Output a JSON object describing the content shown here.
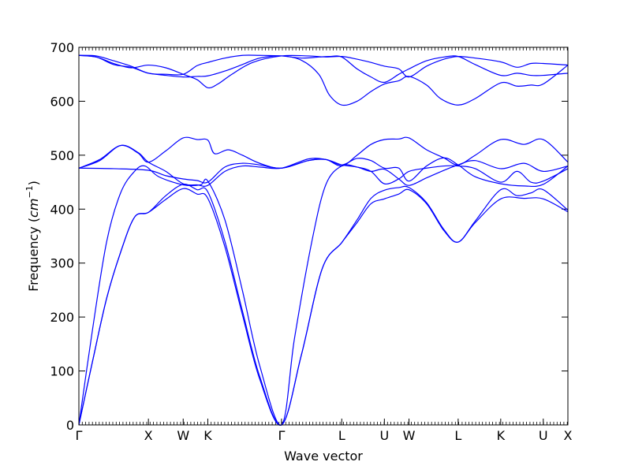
{
  "chart_data": {
    "type": "line",
    "title": "",
    "xlabel": "Wave vector",
    "ylabel": {
      "prefix": "Frequency (",
      "unit_base": "cm",
      "unit_exp": "−1",
      "suffix": ")"
    },
    "ylim": [
      0,
      700
    ],
    "yticks": [
      0,
      100,
      200,
      300,
      400,
      500,
      600,
      700
    ],
    "grid": false,
    "line_color": "#0000ff",
    "x_points": [
      {
        "label": "Γ",
        "x": 0
      },
      {
        "label": "X",
        "x": 1
      },
      {
        "label": "W",
        "x": 1.5
      },
      {
        "label": "K",
        "x": 1.854
      },
      {
        "label": "Γ",
        "x": 2.914
      },
      {
        "label": "L",
        "x": 3.78
      },
      {
        "label": "U",
        "x": 4.393
      },
      {
        "label": "W",
        "x": 4.747
      },
      {
        "label": "L",
        "x": 5.454
      },
      {
        "label": "K",
        "x": 6.066
      },
      {
        "label": "U",
        "x": 6.678
      },
      {
        "label": "X",
        "x": 7.032
      }
    ],
    "xlim": [
      0,
      7.032
    ],
    "series": [
      {
        "values": [
          [
            0,
            0
          ],
          [
            0.2,
            120
          ],
          [
            0.4,
            235
          ],
          [
            0.6,
            320
          ],
          [
            0.8,
            385
          ],
          [
            1,
            394
          ],
          [
            1.25,
            418
          ],
          [
            1.5,
            438
          ],
          [
            1.7,
            428
          ],
          [
            1.854,
            420
          ],
          [
            2.1,
            330
          ],
          [
            2.35,
            205
          ],
          [
            2.6,
            85
          ],
          [
            2.914,
            0
          ],
          [
            3.2,
            130
          ],
          [
            3.5,
            290
          ],
          [
            3.78,
            338
          ],
          [
            4.0,
            375
          ],
          [
            4.2,
            410
          ],
          [
            4.393,
            419
          ],
          [
            4.6,
            428
          ],
          [
            4.747,
            436
          ],
          [
            5.0,
            410
          ],
          [
            5.25,
            360
          ],
          [
            5.454,
            339
          ],
          [
            5.7,
            375
          ],
          [
            6.066,
            419
          ],
          [
            6.4,
            420
          ],
          [
            6.678,
            419
          ],
          [
            7.032,
            395
          ]
        ]
      },
      {
        "values": [
          [
            0,
            0
          ],
          [
            0.2,
            120
          ],
          [
            0.4,
            235
          ],
          [
            0.6,
            320
          ],
          [
            0.8,
            385
          ],
          [
            1,
            394
          ],
          [
            1.25,
            425
          ],
          [
            1.5,
            446
          ],
          [
            1.7,
            436
          ],
          [
            1.854,
            432
          ],
          [
            2.1,
            340
          ],
          [
            2.35,
            212
          ],
          [
            2.6,
            90
          ],
          [
            2.914,
            0
          ],
          [
            3.2,
            130
          ],
          [
            3.5,
            290
          ],
          [
            3.78,
            338
          ],
          [
            4.0,
            380
          ],
          [
            4.2,
            420
          ],
          [
            4.393,
            435
          ],
          [
            4.6,
            440
          ],
          [
            4.747,
            440
          ],
          [
            5.0,
            412
          ],
          [
            5.25,
            362
          ],
          [
            5.454,
            339
          ],
          [
            5.7,
            378
          ],
          [
            6.066,
            436
          ],
          [
            6.3,
            425
          ],
          [
            6.5,
            430
          ],
          [
            6.678,
            436
          ],
          [
            7.032,
            398
          ]
        ]
      },
      {
        "values": [
          [
            0,
            0
          ],
          [
            0.2,
            180
          ],
          [
            0.4,
            340
          ],
          [
            0.6,
            430
          ],
          [
            0.8,
            470
          ],
          [
            0.95,
            480
          ],
          [
            1.15,
            460
          ],
          [
            1.5,
            445
          ],
          [
            1.75,
            445
          ],
          [
            1.854,
            452
          ],
          [
            2.1,
            380
          ],
          [
            2.35,
            250
          ],
          [
            2.6,
            110
          ],
          [
            2.914,
            0
          ],
          [
            3.1,
            160
          ],
          [
            3.35,
            340
          ],
          [
            3.55,
            445
          ],
          [
            3.78,
            480
          ],
          [
            4.0,
            478
          ],
          [
            4.2,
            470
          ],
          [
            4.393,
            447
          ],
          [
            4.6,
            456
          ],
          [
            4.747,
            470
          ],
          [
            5.0,
            476
          ],
          [
            5.25,
            480
          ],
          [
            5.454,
            480
          ],
          [
            5.7,
            475
          ],
          [
            6.066,
            450
          ],
          [
            6.3,
            470
          ],
          [
            6.5,
            450
          ],
          [
            6.678,
            452
          ],
          [
            7.032,
            475
          ]
        ]
      },
      {
        "values": [
          [
            0,
            476
          ],
          [
            0.5,
            475
          ],
          [
            1.0,
            472
          ],
          [
            1.25,
            462
          ],
          [
            1.5,
            456
          ],
          [
            1.7,
            453
          ],
          [
            1.854,
            450
          ],
          [
            2.1,
            478
          ],
          [
            2.35,
            485
          ],
          [
            2.6,
            482
          ],
          [
            2.914,
            476
          ],
          [
            3.3,
            490
          ],
          [
            3.55,
            492
          ],
          [
            3.78,
            482
          ],
          [
            4.0,
            478
          ],
          [
            4.2,
            470
          ],
          [
            4.393,
            474
          ],
          [
            4.6,
            456
          ],
          [
            4.747,
            444
          ],
          [
            5.0,
            458
          ],
          [
            5.25,
            472
          ],
          [
            5.454,
            482
          ],
          [
            5.7,
            490
          ],
          [
            6.066,
            475
          ],
          [
            6.4,
            485
          ],
          [
            6.678,
            470
          ],
          [
            7.032,
            480
          ]
        ]
      },
      {
        "values": [
          [
            0,
            476
          ],
          [
            0.3,
            490
          ],
          [
            0.6,
            518
          ],
          [
            0.85,
            505
          ],
          [
            1,
            487
          ],
          [
            1.25,
            470
          ],
          [
            1.5,
            447
          ],
          [
            1.7,
            445
          ],
          [
            1.854,
            444
          ],
          [
            2.1,
            470
          ],
          [
            2.35,
            480
          ],
          [
            2.6,
            478
          ],
          [
            2.914,
            476
          ],
          [
            3.3,
            493
          ],
          [
            3.55,
            492
          ],
          [
            3.78,
            482
          ],
          [
            4.0,
            494
          ],
          [
            4.2,
            490
          ],
          [
            4.393,
            476
          ],
          [
            4.6,
            476
          ],
          [
            4.747,
            452
          ],
          [
            5.0,
            480
          ],
          [
            5.25,
            495
          ],
          [
            5.454,
            482
          ],
          [
            5.7,
            460
          ],
          [
            6.066,
            447
          ],
          [
            6.4,
            443
          ],
          [
            6.678,
            446
          ],
          [
            7.032,
            480
          ]
        ]
      },
      {
        "values": [
          [
            0,
            476
          ],
          [
            0.3,
            492
          ],
          [
            0.6,
            518
          ],
          [
            0.85,
            504
          ],
          [
            1,
            487
          ],
          [
            1.25,
            508
          ],
          [
            1.5,
            532
          ],
          [
            1.7,
            529
          ],
          [
            1.854,
            528
          ],
          [
            1.95,
            503
          ],
          [
            2.15,
            510
          ],
          [
            2.35,
            500
          ],
          [
            2.6,
            485
          ],
          [
            2.914,
            476
          ],
          [
            3.3,
            490
          ],
          [
            3.55,
            492
          ],
          [
            3.78,
            480
          ],
          [
            4.0,
            500
          ],
          [
            4.2,
            520
          ],
          [
            4.393,
            529
          ],
          [
            4.6,
            530
          ],
          [
            4.747,
            532
          ],
          [
            5.0,
            510
          ],
          [
            5.25,
            495
          ],
          [
            5.454,
            482
          ],
          [
            5.7,
            500
          ],
          [
            6.066,
            529
          ],
          [
            6.4,
            520
          ],
          [
            6.678,
            529
          ],
          [
            7.032,
            487
          ]
        ]
      },
      {
        "values": [
          [
            0,
            685
          ],
          [
            0.25,
            682
          ],
          [
            0.5,
            670
          ],
          [
            0.75,
            662
          ],
          [
            1.0,
            667
          ],
          [
            1.25,
            662
          ],
          [
            1.5,
            650
          ],
          [
            1.7,
            640
          ],
          [
            1.854,
            625
          ],
          [
            2.0,
            632
          ],
          [
            2.2,
            650
          ],
          [
            2.5,
            672
          ],
          [
            2.914,
            684
          ],
          [
            3.3,
            684
          ],
          [
            3.55,
            682
          ],
          [
            3.78,
            683
          ],
          [
            4.0,
            678
          ],
          [
            4.2,
            672
          ],
          [
            4.393,
            665
          ],
          [
            4.6,
            660
          ],
          [
            4.747,
            645
          ],
          [
            5.0,
            665
          ],
          [
            5.25,
            678
          ],
          [
            5.454,
            683
          ],
          [
            5.7,
            680
          ],
          [
            6.066,
            673
          ],
          [
            6.3,
            663
          ],
          [
            6.5,
            670
          ],
          [
            6.678,
            670
          ],
          [
            7.032,
            667
          ]
        ]
      },
      {
        "values": [
          [
            0,
            685
          ],
          [
            0.25,
            682
          ],
          [
            0.5,
            668
          ],
          [
            0.75,
            663
          ],
          [
            1.0,
            652
          ],
          [
            1.25,
            648
          ],
          [
            1.5,
            645
          ],
          [
            1.7,
            646
          ],
          [
            1.854,
            647
          ],
          [
            2.1,
            656
          ],
          [
            2.35,
            668
          ],
          [
            2.6,
            680
          ],
          [
            2.914,
            684
          ],
          [
            3.2,
            676
          ],
          [
            3.45,
            650
          ],
          [
            3.6,
            612
          ],
          [
            3.78,
            593
          ],
          [
            4.0,
            600
          ],
          [
            4.2,
            618
          ],
          [
            4.393,
            632
          ],
          [
            4.6,
            638
          ],
          [
            4.747,
            646
          ],
          [
            5.0,
            630
          ],
          [
            5.2,
            605
          ],
          [
            5.454,
            593
          ],
          [
            5.7,
            605
          ],
          [
            6.066,
            634
          ],
          [
            6.3,
            628
          ],
          [
            6.5,
            630
          ],
          [
            6.678,
            632
          ],
          [
            7.032,
            667
          ]
        ]
      },
      {
        "values": [
          [
            0,
            685
          ],
          [
            0.25,
            684
          ],
          [
            0.5,
            675
          ],
          [
            0.75,
            665
          ],
          [
            1.0,
            652
          ],
          [
            1.25,
            650
          ],
          [
            1.5,
            650
          ],
          [
            1.7,
            666
          ],
          [
            1.854,
            672
          ],
          [
            2.1,
            680
          ],
          [
            2.35,
            685
          ],
          [
            2.6,
            685
          ],
          [
            2.914,
            684
          ],
          [
            3.2,
            680
          ],
          [
            3.45,
            682
          ],
          [
            3.6,
            683
          ],
          [
            3.78,
            682
          ],
          [
            4.0,
            660
          ],
          [
            4.2,
            645
          ],
          [
            4.393,
            635
          ],
          [
            4.6,
            650
          ],
          [
            4.747,
            660
          ],
          [
            5.0,
            675
          ],
          [
            5.25,
            682
          ],
          [
            5.454,
            683
          ],
          [
            5.7,
            668
          ],
          [
            6.066,
            648
          ],
          [
            6.3,
            652
          ],
          [
            6.5,
            648
          ],
          [
            6.678,
            648
          ],
          [
            7.032,
            652
          ]
        ]
      }
    ]
  }
}
